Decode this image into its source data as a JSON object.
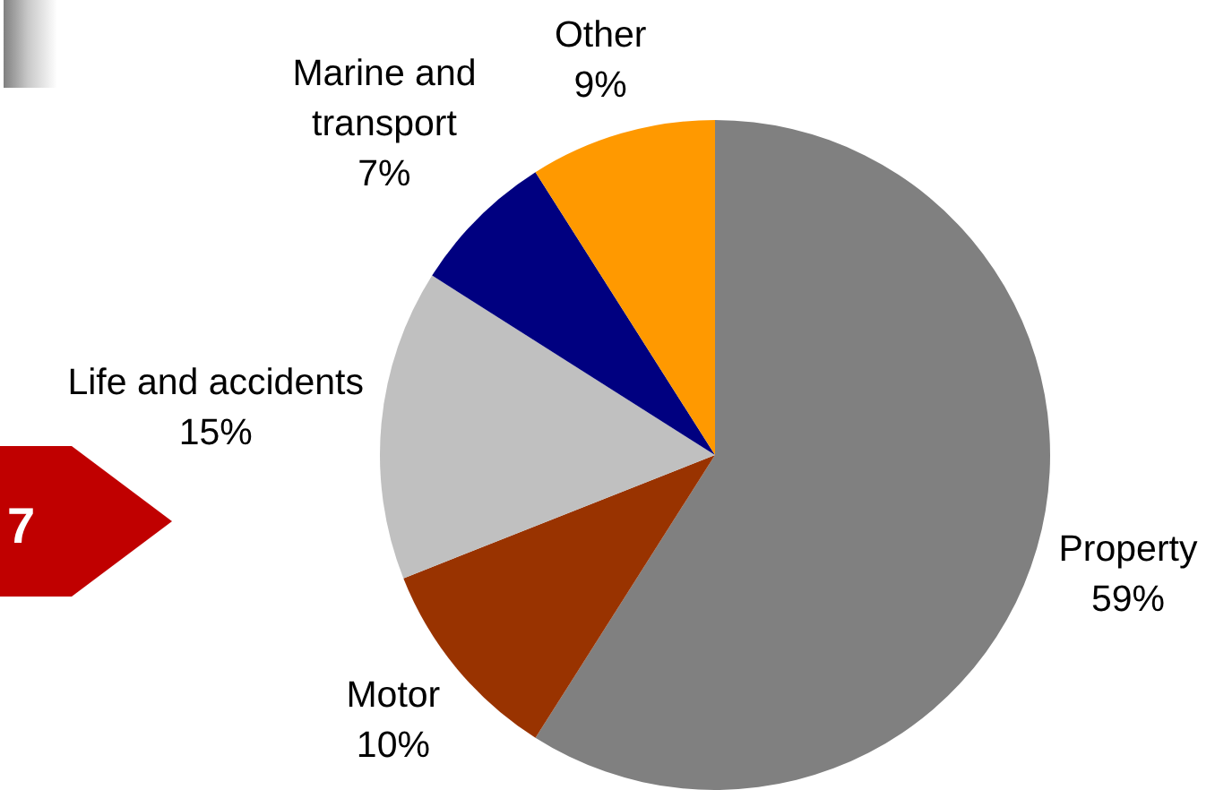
{
  "chart_data": {
    "type": "pie",
    "categories": [
      "Property",
      "Motor",
      "Life and accidents",
      "Marine and\ntransport",
      "Other"
    ],
    "values": [
      59,
      10,
      15,
      7,
      9
    ],
    "colors": [
      "#808080",
      "#993300",
      "#c0c0c0",
      "#000080",
      "#ff9900"
    ],
    "value_labels": [
      "59%",
      "10%",
      "15%",
      "7%",
      "9%"
    ],
    "annotations": [
      "7"
    ]
  }
}
